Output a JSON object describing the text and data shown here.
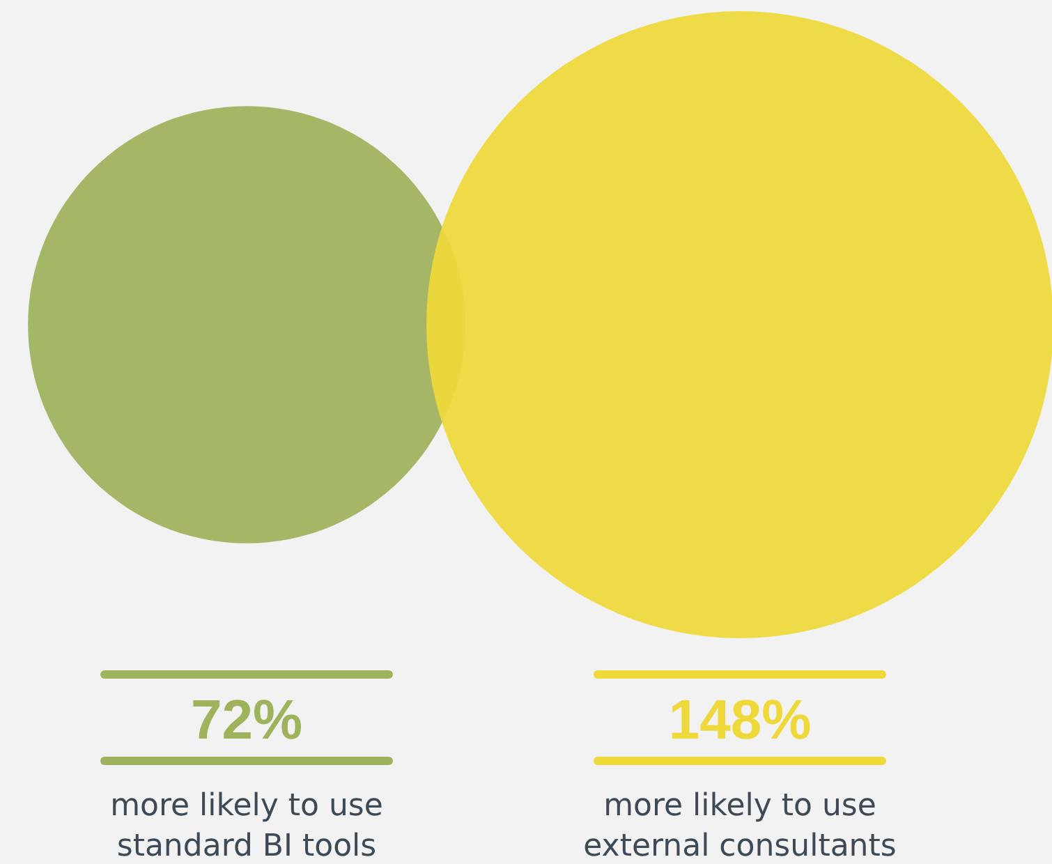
{
  "chart_data": {
    "type": "other",
    "categories": [
      "more likely to use standard BI tools",
      "more likely to use external consultants"
    ],
    "values": [
      72,
      148
    ],
    "value_labels": [
      "72%",
      "148%"
    ],
    "colors": [
      "#9fb35c",
      "#efd83a"
    ]
  }
}
